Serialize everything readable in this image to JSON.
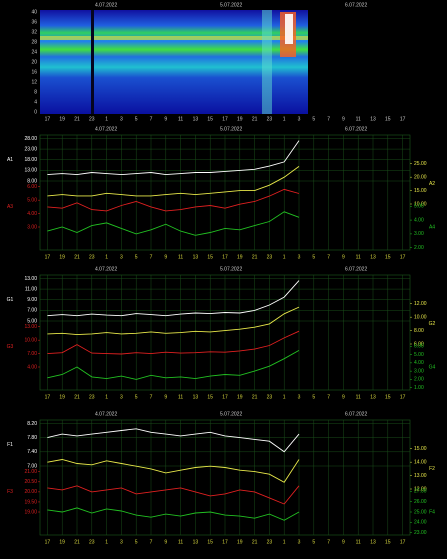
{
  "spectrogram": {
    "dates": [
      "4.07.2022",
      "5.07.2022",
      "6.07.2022"
    ],
    "y_labels": [
      "40",
      "36",
      "32",
      "28",
      "24",
      "20",
      "16",
      "12",
      "8",
      "4",
      "0"
    ]
  },
  "chart_data": [
    {
      "type": "line",
      "dates": [
        "4.07.2022",
        "5.07.2022",
        "6.07.2022"
      ],
      "categories": [
        "17",
        "19",
        "21",
        "23",
        "1",
        "3",
        "5",
        "7",
        "9",
        "11",
        "13",
        "15",
        "17",
        "19",
        "21",
        "23",
        "1",
        "3",
        "5",
        "7",
        "9",
        "11",
        "13",
        "15",
        "17"
      ],
      "series": [
        {
          "name": "A1",
          "color": "#ffffff",
          "side": "left",
          "ylim": [
            8,
            28
          ],
          "yticks": [
            {
              "value": 8,
              "label": "8.00"
            },
            {
              "value": 13,
              "label": "13.00"
            },
            {
              "value": 18,
              "label": "18.00"
            },
            {
              "value": 23,
              "label": "23.00"
            },
            {
              "value": 28,
              "label": "28.00"
            }
          ],
          "values": [
            11,
            11.5,
            11,
            12,
            11.5,
            11,
            11.5,
            12,
            11,
            11.5,
            12,
            12,
            12.5,
            13,
            13.5,
            15,
            17,
            27,
            null,
            null,
            null,
            null,
            null,
            null,
            null
          ]
        },
        {
          "name": "A2",
          "color": "#e8e84a",
          "side": "right",
          "ylim": [
            10,
            25
          ],
          "yticks": [
            {
              "value": 10,
              "label": "10.00"
            },
            {
              "value": 15,
              "label": "15.00"
            },
            {
              "value": 20,
              "label": "20.00"
            },
            {
              "value": 25,
              "label": "25.00"
            }
          ],
          "values": [
            13,
            13.5,
            13,
            13,
            14,
            13.5,
            13,
            13,
            13.5,
            14,
            13.5,
            14,
            14.5,
            15,
            15,
            17,
            20,
            24,
            null,
            null,
            null,
            null,
            null,
            null,
            null
          ]
        },
        {
          "name": "A3",
          "color": "#e02020",
          "side": "left",
          "ylim": [
            3,
            6
          ],
          "yticks": [
            {
              "value": 3,
              "label": "3.00"
            },
            {
              "value": 4,
              "label": "4.00"
            },
            {
              "value": 5,
              "label": "5.00"
            },
            {
              "value": 6,
              "label": "6.00"
            }
          ],
          "values": [
            4.5,
            4.4,
            4.8,
            4.3,
            4.2,
            4.6,
            4.9,
            4.5,
            4.2,
            4.3,
            4.5,
            4.6,
            4.4,
            4.7,
            4.9,
            5.3,
            5.8,
            5.5,
            null,
            null,
            null,
            null,
            null,
            null,
            null
          ]
        },
        {
          "name": "A4",
          "color": "#22c022",
          "side": "right",
          "ylim": [
            2,
            5
          ],
          "yticks": [
            {
              "value": 2,
              "label": "2.00"
            },
            {
              "value": 3,
              "label": "3.00"
            },
            {
              "value": 4,
              "label": "4.00"
            },
            {
              "value": 5,
              "label": "5.00"
            }
          ],
          "values": [
            3.2,
            3.5,
            3.1,
            3.6,
            3.8,
            3.4,
            3,
            3.3,
            3.7,
            3.2,
            2.9,
            3.1,
            3.4,
            3.3,
            3.6,
            3.9,
            4.6,
            4.2,
            null,
            null,
            null,
            null,
            null,
            null,
            null
          ]
        }
      ]
    },
    {
      "type": "line",
      "dates": [
        "4.07.2022",
        "5.07.2022",
        "6.07.2022"
      ],
      "categories": [
        "17",
        "19",
        "21",
        "23",
        "1",
        "3",
        "5",
        "7",
        "9",
        "11",
        "13",
        "15",
        "17",
        "19",
        "21",
        "23",
        "1",
        "3",
        "5",
        "7",
        "9",
        "11",
        "13",
        "15",
        "17"
      ],
      "series": [
        {
          "name": "G1",
          "color": "#ffffff",
          "side": "left",
          "ylim": [
            5,
            13
          ],
          "yticks": [
            {
              "value": 5,
              "label": "5.00"
            },
            {
              "value": 7,
              "label": "7.00"
            },
            {
              "value": 9,
              "label": "9.00"
            },
            {
              "value": 11,
              "label": "11.00"
            },
            {
              "value": 13,
              "label": "13.00"
            }
          ],
          "values": [
            6,
            6.2,
            6,
            6.3,
            6.1,
            6,
            6.4,
            6.2,
            6,
            6.3,
            6.5,
            6.4,
            6.6,
            6.5,
            7,
            8,
            9.5,
            12.6,
            null,
            null,
            null,
            null,
            null,
            null,
            null
          ]
        },
        {
          "name": "G2",
          "color": "#e8e84a",
          "side": "right",
          "ylim": [
            6,
            12
          ],
          "yticks": [
            {
              "value": 6,
              "label": "6.00"
            },
            {
              "value": 8,
              "label": "8.00"
            },
            {
              "value": 10,
              "label": "10.00"
            },
            {
              "value": 12,
              "label": "12.00"
            }
          ],
          "values": [
            7.5,
            7.6,
            7.4,
            7.5,
            7.7,
            7.5,
            7.6,
            7.8,
            7.6,
            7.7,
            7.9,
            7.8,
            8,
            8.2,
            8.5,
            9,
            10.5,
            11.5,
            null,
            null,
            null,
            null,
            null,
            null,
            null
          ]
        },
        {
          "name": "G3",
          "color": "#e02020",
          "side": "left",
          "ylim": [
            4,
            13
          ],
          "yticks": [
            {
              "value": 4,
              "label": "4.00"
            },
            {
              "value": 7,
              "label": "7.00"
            },
            {
              "value": 10,
              "label": "10.00"
            },
            {
              "value": 13,
              "label": "13.00"
            }
          ],
          "values": [
            7,
            7.2,
            9,
            7.1,
            7,
            6.9,
            7.2,
            7,
            7.3,
            7.1,
            7.2,
            7.4,
            7.3,
            7.6,
            8,
            8.8,
            10.5,
            12,
            null,
            null,
            null,
            null,
            null,
            null,
            null
          ]
        },
        {
          "name": "G4",
          "color": "#22c022",
          "side": "right",
          "ylim": [
            1,
            6
          ],
          "yticks": [
            {
              "value": 1,
              "label": "1.00"
            },
            {
              "value": 2,
              "label": "2.00"
            },
            {
              "value": 3,
              "label": "3.00"
            },
            {
              "value": 4,
              "label": "4.00"
            },
            {
              "value": 5,
              "label": "5.00"
            },
            {
              "value": 6,
              "label": "6.00"
            }
          ],
          "values": [
            2.2,
            2.6,
            3.5,
            2.3,
            2.1,
            2.4,
            2,
            2.5,
            2.2,
            2.3,
            2.1,
            2.4,
            2.6,
            2.5,
            3,
            3.6,
            4.5,
            5.5,
            null,
            null,
            null,
            null,
            null,
            null,
            null
          ]
        }
      ]
    },
    {
      "type": "line",
      "dates": [
        "4.07.2022",
        "5.07.2022",
        "6.07.2022"
      ],
      "categories": [
        "17",
        "19",
        "21",
        "23",
        "1",
        "3",
        "5",
        "7",
        "9",
        "11",
        "13",
        "15",
        "17",
        "19",
        "21",
        "23",
        "1",
        "3",
        "5",
        "7",
        "9",
        "11",
        "13",
        "15",
        "17"
      ],
      "series": [
        {
          "name": "F1",
          "color": "#ffffff",
          "side": "left",
          "ylim": [
            7,
            8.2
          ],
          "yticks": [
            {
              "value": 7,
              "label": "7.00"
            },
            {
              "value": 7.4,
              "label": "7.40"
            },
            {
              "value": 7.8,
              "label": "7.80"
            },
            {
              "value": 8.2,
              "label": "8.20"
            }
          ],
          "values": [
            7.8,
            7.9,
            7.85,
            7.9,
            7.95,
            8,
            8.05,
            7.95,
            7.9,
            7.85,
            7.9,
            7.95,
            7.85,
            7.8,
            7.75,
            7.7,
            7.4,
            7.9,
            null,
            null,
            null,
            null,
            null,
            null,
            null
          ]
        },
        {
          "name": "F2",
          "color": "#e8e84a",
          "side": "right",
          "ylim": [
            12,
            15
          ],
          "yticks": [
            {
              "value": 12,
              "label": "12.00"
            },
            {
              "value": 13,
              "label": "13.00"
            },
            {
              "value": 14,
              "label": "14.00"
            },
            {
              "value": 15,
              "label": "15.00"
            }
          ],
          "values": [
            14,
            14.2,
            13.9,
            13.8,
            14.1,
            13.9,
            13.7,
            13.5,
            13.2,
            13.4,
            13.6,
            13.7,
            13.6,
            13.4,
            13.3,
            13.1,
            12.5,
            14.2,
            null,
            null,
            null,
            null,
            null,
            null,
            null
          ]
        },
        {
          "name": "F3",
          "color": "#e02020",
          "side": "left",
          "ylim": [
            19,
            21
          ],
          "yticks": [
            {
              "value": 19,
              "label": "19.00"
            },
            {
              "value": 19.5,
              "label": "19.50"
            },
            {
              "value": 20,
              "label": "20.00"
            },
            {
              "value": 20.5,
              "label": "20.50"
            },
            {
              "value": 21,
              "label": "21.00"
            }
          ],
          "values": [
            20.2,
            20.1,
            20.3,
            20,
            20.1,
            20.2,
            19.9,
            20,
            20.1,
            20.2,
            20,
            19.8,
            19.9,
            20.1,
            20,
            19.7,
            19.4,
            20.3,
            null,
            null,
            null,
            null,
            null,
            null,
            null
          ]
        },
        {
          "name": "F4",
          "color": "#22c022",
          "side": "right",
          "ylim": [
            23,
            27
          ],
          "yticks": [
            {
              "value": 23,
              "label": "23.00"
            },
            {
              "value": 24,
              "label": "24.00"
            },
            {
              "value": 25,
              "label": "25.00"
            },
            {
              "value": 26,
              "label": "26.00"
            },
            {
              "value": 27,
              "label": "27.00"
            }
          ],
          "values": [
            25.2,
            25,
            25.4,
            24.9,
            25.3,
            25.1,
            24.7,
            24.5,
            24.8,
            24.6,
            24.9,
            25,
            24.7,
            24.6,
            24.4,
            24.8,
            24.2,
            25,
            null,
            null,
            null,
            null,
            null,
            null,
            null
          ]
        }
      ]
    }
  ]
}
